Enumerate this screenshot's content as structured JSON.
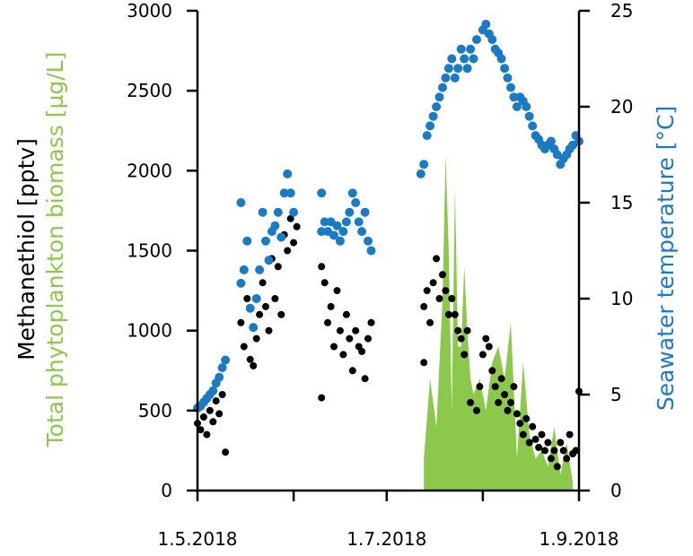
{
  "chart_data": {
    "type": "scatter",
    "title": "",
    "colors": {
      "methanethiol": "#000000",
      "temperature": "#1a7ac4",
      "biomass": "#8cc84b",
      "axis": "#000000"
    },
    "x_axis": {
      "type": "date",
      "range": [
        "2018-05-01",
        "2018-09-01"
      ],
      "tick_labels": [
        "1.5.2018",
        "1.7.2018",
        "1.9.2018"
      ],
      "tick_dates": [
        "2018-05-01",
        "2018-07-01",
        "2018-09-01"
      ],
      "minor_tick_dates": [
        "2018-06-01",
        "2018-08-01"
      ]
    },
    "y_left": {
      "label_line1": "Methanethiol [pptv]",
      "label_line2": "Total phytoplankton biomass [µg/L]",
      "range": [
        0,
        3000
      ],
      "tick_labels": [
        "0",
        "500",
        "1000",
        "1500",
        "2000",
        "2500",
        "3000"
      ],
      "tick_values": [
        0,
        500,
        1000,
        1500,
        2000,
        2500,
        3000
      ]
    },
    "y_right": {
      "label": "Seawater temperature [°C]",
      "range": [
        0,
        25
      ],
      "tick_labels": [
        "0",
        "5",
        "10",
        "15",
        "20",
        "25"
      ],
      "tick_values": [
        0,
        5,
        10,
        15,
        20,
        25
      ]
    },
    "series_biomass": {
      "type": "area",
      "axis": "left",
      "x": [
        "2018-07-13",
        "2018-07-15",
        "2018-07-17",
        "2018-07-19",
        "2018-07-20",
        "2018-07-21",
        "2018-07-22",
        "2018-07-23",
        "2018-07-24",
        "2018-07-25",
        "2018-07-26",
        "2018-07-27",
        "2018-07-28",
        "2018-07-29",
        "2018-07-30",
        "2018-07-31",
        "2018-08-02",
        "2018-08-04",
        "2018-08-06",
        "2018-08-08",
        "2018-08-10",
        "2018-08-12",
        "2018-08-14",
        "2018-08-16",
        "2018-08-18",
        "2018-08-20",
        "2018-08-22",
        "2018-08-24",
        "2018-08-26",
        "2018-08-28",
        "2018-08-30"
      ],
      "values": [
        200,
        700,
        400,
        1200,
        2100,
        1500,
        500,
        1900,
        900,
        900,
        1400,
        1000,
        700,
        600,
        650,
        700,
        500,
        800,
        900,
        700,
        1050,
        200,
        800,
        350,
        200,
        250,
        150,
        400,
        100,
        300,
        50
      ]
    },
    "series_methanethiol": {
      "type": "scatter",
      "axis": "left",
      "points": [
        [
          "2018-05-01",
          420
        ],
        [
          "2018-05-02",
          380
        ],
        [
          "2018-05-03",
          460
        ],
        [
          "2018-05-04",
          350
        ],
        [
          "2018-05-05",
          500
        ],
        [
          "2018-05-06",
          430
        ],
        [
          "2018-05-07",
          560
        ],
        [
          "2018-05-08",
          480
        ],
        [
          "2018-05-09",
          600
        ],
        [
          "2018-05-10",
          240
        ],
        [
          "2018-05-15",
          1050
        ],
        [
          "2018-05-16",
          900
        ],
        [
          "2018-05-17",
          1200
        ],
        [
          "2018-05-18",
          820
        ],
        [
          "2018-05-19",
          780
        ],
        [
          "2018-05-20",
          950
        ],
        [
          "2018-05-21",
          1100
        ],
        [
          "2018-05-22",
          1300
        ],
        [
          "2018-05-23",
          1150
        ],
        [
          "2018-05-24",
          1000
        ],
        [
          "2018-05-25",
          1450
        ],
        [
          "2018-05-26",
          1200
        ],
        [
          "2018-05-27",
          1400
        ],
        [
          "2018-05-28",
          1100
        ],
        [
          "2018-05-29",
          1600
        ],
        [
          "2018-05-30",
          1500
        ],
        [
          "2018-05-31",
          1700
        ],
        [
          "2018-06-01",
          1550
        ],
        [
          "2018-06-02",
          1650
        ],
        [
          "2018-06-10",
          1400
        ],
        [
          "2018-06-10",
          580
        ],
        [
          "2018-06-11",
          1300
        ],
        [
          "2018-06-12",
          1050
        ],
        [
          "2018-06-13",
          1150
        ],
        [
          "2018-06-14",
          900
        ],
        [
          "2018-06-15",
          1250
        ],
        [
          "2018-06-16",
          1000
        ],
        [
          "2018-06-17",
          850
        ],
        [
          "2018-06-18",
          1100
        ],
        [
          "2018-06-19",
          950
        ],
        [
          "2018-06-20",
          750
        ],
        [
          "2018-06-21",
          1000
        ],
        [
          "2018-06-22",
          900
        ],
        [
          "2018-06-23",
          870
        ],
        [
          "2018-06-24",
          700
        ],
        [
          "2018-06-25",
          950
        ],
        [
          "2018-06-26",
          1050
        ],
        [
          "2018-07-13",
          1150
        ],
        [
          "2018-07-13",
          800
        ],
        [
          "2018-07-14",
          1250
        ],
        [
          "2018-07-15",
          1050
        ],
        [
          "2018-07-16",
          1300
        ],
        [
          "2018-07-17",
          1450
        ],
        [
          "2018-07-18",
          1200
        ],
        [
          "2018-07-19",
          1350
        ],
        [
          "2018-07-20",
          1250
        ],
        [
          "2018-07-21",
          1100
        ],
        [
          "2018-07-22",
          1200
        ],
        [
          "2018-07-23",
          1100
        ],
        [
          "2018-07-24",
          1000
        ],
        [
          "2018-07-25",
          950
        ],
        [
          "2018-07-26",
          850
        ],
        [
          "2018-07-27",
          1000
        ],
        [
          "2018-07-28",
          550
        ],
        [
          "2018-07-30",
          500
        ],
        [
          "2018-07-31",
          650
        ],
        [
          "2018-08-01",
          850
        ],
        [
          "2018-08-02",
          950
        ],
        [
          "2018-08-03",
          900
        ],
        [
          "2018-08-04",
          750
        ],
        [
          "2018-08-05",
          650
        ],
        [
          "2018-08-06",
          550
        ],
        [
          "2018-08-07",
          700
        ],
        [
          "2018-08-08",
          600
        ],
        [
          "2018-08-09",
          500
        ],
        [
          "2018-08-10",
          550
        ],
        [
          "2018-08-11",
          650
        ],
        [
          "2018-08-12",
          480
        ],
        [
          "2018-08-13",
          420
        ],
        [
          "2018-08-14",
          350
        ],
        [
          "2018-08-15",
          450
        ],
        [
          "2018-08-16",
          300
        ],
        [
          "2018-08-17",
          400
        ],
        [
          "2018-08-18",
          320
        ],
        [
          "2018-08-19",
          270
        ],
        [
          "2018-08-20",
          350
        ],
        [
          "2018-08-21",
          250
        ],
        [
          "2018-08-22",
          300
        ],
        [
          "2018-08-23",
          200
        ],
        [
          "2018-08-24",
          250
        ],
        [
          "2018-08-25",
          150
        ],
        [
          "2018-08-26",
          300
        ],
        [
          "2018-08-27",
          250
        ],
        [
          "2018-08-28",
          200
        ],
        [
          "2018-08-29",
          350
        ],
        [
          "2018-08-30",
          230
        ],
        [
          "2018-08-31",
          250
        ],
        [
          "2018-09-01",
          620
        ]
      ]
    },
    "series_temperature": {
      "type": "scatter",
      "axis": "right",
      "points": [
        [
          "2018-05-01",
          4.3
        ],
        [
          "2018-05-02",
          4.4
        ],
        [
          "2018-05-03",
          4.6
        ],
        [
          "2018-05-04",
          4.8
        ],
        [
          "2018-05-05",
          5.0
        ],
        [
          "2018-05-06",
          5.2
        ],
        [
          "2018-05-07",
          5.6
        ],
        [
          "2018-05-08",
          5.9
        ],
        [
          "2018-05-09",
          6.4
        ],
        [
          "2018-05-10",
          6.8
        ],
        [
          "2018-05-15",
          10.8
        ],
        [
          "2018-05-15",
          15.0
        ],
        [
          "2018-05-16",
          11.5
        ],
        [
          "2018-05-17",
          13.0
        ],
        [
          "2018-05-18",
          9.5
        ],
        [
          "2018-05-19",
          8.5
        ],
        [
          "2018-05-20",
          10.0
        ],
        [
          "2018-05-21",
          11.5
        ],
        [
          "2018-05-22",
          14.5
        ],
        [
          "2018-05-23",
          13.0
        ],
        [
          "2018-05-24",
          12.0
        ],
        [
          "2018-05-25",
          13.5
        ],
        [
          "2018-05-26",
          13.8
        ],
        [
          "2018-05-27",
          14.5
        ],
        [
          "2018-05-28",
          13.2
        ],
        [
          "2018-05-29",
          15.5
        ],
        [
          "2018-05-30",
          16.5
        ],
        [
          "2018-05-31",
          15.5
        ],
        [
          "2018-06-01",
          14.5
        ],
        [
          "2018-06-10",
          15.5
        ],
        [
          "2018-06-10",
          13.5
        ],
        [
          "2018-06-11",
          14.0
        ],
        [
          "2018-06-12",
          13.5
        ],
        [
          "2018-06-13",
          14.0
        ],
        [
          "2018-06-14",
          13.3
        ],
        [
          "2018-06-15",
          13.8
        ],
        [
          "2018-06-16",
          13.0
        ],
        [
          "2018-06-17",
          13.5
        ],
        [
          "2018-06-18",
          14.0
        ],
        [
          "2018-06-19",
          14.5
        ],
        [
          "2018-06-20",
          15.5
        ],
        [
          "2018-06-21",
          15.0
        ],
        [
          "2018-06-22",
          14.0
        ],
        [
          "2018-06-23",
          13.5
        ],
        [
          "2018-06-24",
          14.5
        ],
        [
          "2018-06-25",
          13.0
        ],
        [
          "2018-06-26",
          12.5
        ],
        [
          "2018-07-12",
          16.5
        ],
        [
          "2018-07-13",
          17.0
        ],
        [
          "2018-07-14",
          18.5
        ],
        [
          "2018-07-15",
          19.0
        ],
        [
          "2018-07-16",
          19.5
        ],
        [
          "2018-07-17",
          20.0
        ],
        [
          "2018-07-18",
          20.5
        ],
        [
          "2018-07-19",
          21.0
        ],
        [
          "2018-07-20",
          21.5
        ],
        [
          "2018-07-21",
          22.0
        ],
        [
          "2018-07-22",
          22.5
        ],
        [
          "2018-07-23",
          21.5
        ],
        [
          "2018-07-24",
          22.0
        ],
        [
          "2018-07-25",
          23.0
        ],
        [
          "2018-07-26",
          22.5
        ],
        [
          "2018-07-27",
          22.0
        ],
        [
          "2018-07-28",
          23.0
        ],
        [
          "2018-07-29",
          22.5
        ],
        [
          "2018-07-30",
          23.5
        ],
        [
          "2018-08-01",
          24.0
        ],
        [
          "2018-08-02",
          24.3
        ],
        [
          "2018-08-03",
          23.8
        ],
        [
          "2018-08-04",
          23.5
        ],
        [
          "2018-08-05",
          23.0
        ],
        [
          "2018-08-06",
          22.8
        ],
        [
          "2018-08-07",
          22.5
        ],
        [
          "2018-08-08",
          22.0
        ],
        [
          "2018-08-09",
          21.5
        ],
        [
          "2018-08-10",
          21.0
        ],
        [
          "2018-08-11",
          20.5
        ],
        [
          "2018-08-12",
          20.0
        ],
        [
          "2018-08-13",
          20.5
        ],
        [
          "2018-08-14",
          20.3
        ],
        [
          "2018-08-15",
          20.0
        ],
        [
          "2018-08-16",
          19.5
        ],
        [
          "2018-08-17",
          19.0
        ],
        [
          "2018-08-18",
          18.5
        ],
        [
          "2018-08-19",
          18.3
        ],
        [
          "2018-08-20",
          18.0
        ],
        [
          "2018-08-21",
          17.8
        ],
        [
          "2018-08-22",
          18.0
        ],
        [
          "2018-08-23",
          18.2
        ],
        [
          "2018-08-24",
          17.8
        ],
        [
          "2018-08-25",
          17.5
        ],
        [
          "2018-08-26",
          17.0
        ],
        [
          "2018-08-27",
          17.3
        ],
        [
          "2018-08-28",
          17.5
        ],
        [
          "2018-08-29",
          17.8
        ],
        [
          "2018-08-30",
          18.0
        ],
        [
          "2018-08-31",
          18.5
        ],
        [
          "2018-09-01",
          18.2
        ]
      ]
    },
    "grid": false,
    "legend": "none"
  }
}
